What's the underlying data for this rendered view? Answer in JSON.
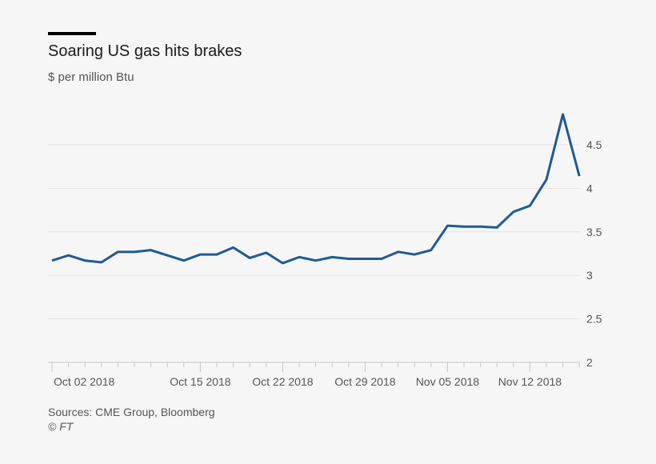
{
  "chart_data": {
    "type": "line",
    "title": "Soaring US gas hits brakes",
    "subtitle": "$ per million Btu",
    "source": "Sources: CME Group, Bloomberg",
    "credit": "© FT",
    "x": [
      "2018-10-02",
      "2018-10-03",
      "2018-10-04",
      "2018-10-05",
      "2018-10-08",
      "2018-10-09",
      "2018-10-10",
      "2018-10-11",
      "2018-10-12",
      "2018-10-15",
      "2018-10-16",
      "2018-10-17",
      "2018-10-18",
      "2018-10-19",
      "2018-10-22",
      "2018-10-23",
      "2018-10-24",
      "2018-10-25",
      "2018-10-26",
      "2018-10-29",
      "2018-10-30",
      "2018-10-31",
      "2018-11-01",
      "2018-11-02",
      "2018-11-05",
      "2018-11-06",
      "2018-11-07",
      "2018-11-08",
      "2018-11-09",
      "2018-11-12",
      "2018-11-13",
      "2018-11-14",
      "2018-11-15"
    ],
    "series": [
      {
        "values": [
          3.17,
          3.23,
          3.17,
          3.15,
          3.27,
          3.27,
          3.29,
          3.23,
          3.17,
          3.24,
          3.24,
          3.32,
          3.2,
          3.26,
          3.14,
          3.21,
          3.17,
          3.21,
          3.19,
          3.19,
          3.19,
          3.27,
          3.24,
          3.29,
          3.57,
          3.56,
          3.56,
          3.55,
          3.73,
          3.8,
          4.1,
          4.85,
          4.14
        ],
        "color": "#1f5a96"
      }
    ],
    "x_tick_labels": [
      {
        "index": 0,
        "label": "Oct 02 2018"
      },
      {
        "index": 9,
        "label": "Oct 15 2018"
      },
      {
        "index": 14,
        "label": "Oct 22 2018"
      },
      {
        "index": 19,
        "label": "Oct 29 2018"
      },
      {
        "index": 24,
        "label": "Nov 05 2018"
      },
      {
        "index": 29,
        "label": "Nov 12 2018"
      }
    ],
    "y_ticks": [
      2,
      2.5,
      3,
      3.5,
      4,
      4.5
    ],
    "y_tick_labels": [
      "2",
      "2.5",
      "3",
      "3.5",
      "4",
      "4.5"
    ],
    "ylim": [
      2,
      4.9
    ],
    "y_axis_side": "right",
    "grid": true
  }
}
